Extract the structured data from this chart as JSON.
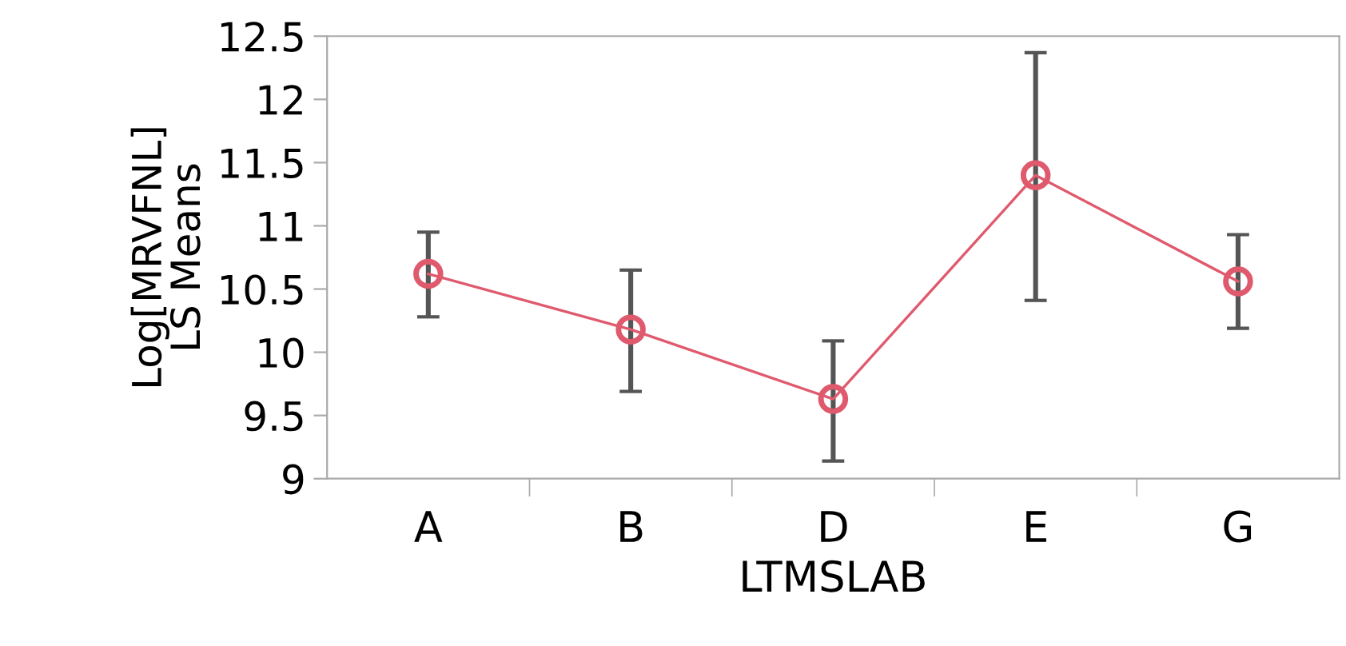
{
  "chart_data": {
    "type": "line",
    "xlabel": "LTMSLAB",
    "ylabel": "Log[MRVFNL]\nLS Means",
    "categories": [
      "A",
      "B",
      "D",
      "E",
      "G"
    ],
    "series": [
      {
        "color": "#e05a6e",
        "values": [
          10.62,
          10.18,
          9.63,
          11.4,
          10.56
        ],
        "errors": [
          [
            10.28,
            10.95
          ],
          [
            9.69,
            10.65
          ],
          [
            9.14,
            10.09
          ],
          [
            10.41,
            12.37
          ],
          [
            10.19,
            10.93
          ]
        ]
      }
    ],
    "ylim": [
      9,
      12.5
    ],
    "yticks": [
      9,
      9.5,
      10,
      10.5,
      11,
      11.5,
      12,
      12.5
    ],
    "marker": "circle",
    "line_style": "solid",
    "grid": false,
    "legend": false
  }
}
